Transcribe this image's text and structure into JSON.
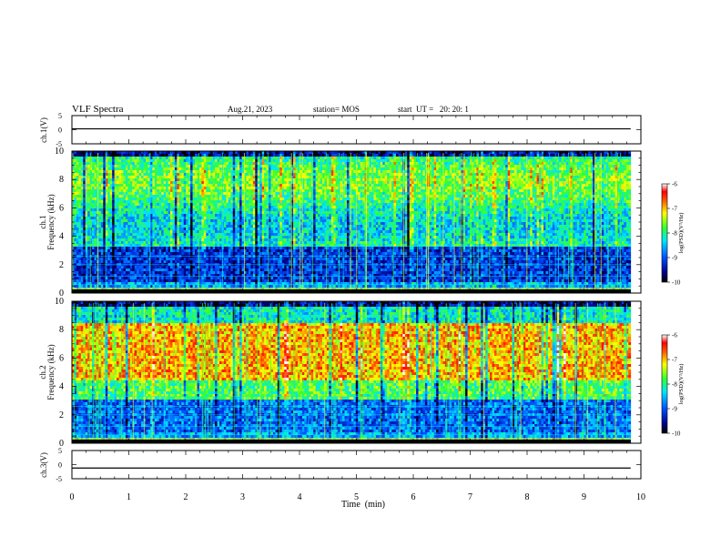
{
  "header": {
    "title": "VLF Spectra",
    "date": "Aug.21, 2023",
    "station": "station= MOS",
    "start_ut": "start  UT =   20: 20: 1"
  },
  "chart_data": [
    {
      "type": "line",
      "panel": "ch.1(V)",
      "ylabel": "ch.1(V)",
      "ylim": [
        -5,
        5
      ],
      "y_ticks": [
        "5",
        "0",
        "-5"
      ],
      "x": [
        0,
        9.82
      ],
      "values": [
        0.3,
        0.3
      ]
    },
    {
      "type": "heatmap",
      "panel": "ch.1 spectrogram",
      "ylabel": "ch.1",
      "ylabel2": "Frequency (kHz)",
      "ylim": [
        0,
        10
      ],
      "y_ticks": [
        "0",
        "2",
        "4",
        "6",
        "8",
        "10"
      ],
      "xlim": [
        0,
        10
      ],
      "data_end_min": 9.82,
      "colorbar": {
        "label": "log(PSD)(V²/Hz)",
        "range": [
          -10,
          -6
        ],
        "ticks": [
          "-6",
          "-7",
          "-8",
          "-9",
          "-10"
        ]
      }
    },
    {
      "type": "heatmap",
      "panel": "ch.2 spectrogram",
      "ylabel": "ch.2",
      "ylabel2": "Frequency (kHz)",
      "ylim": [
        0,
        10
      ],
      "y_ticks": [
        "0",
        "2",
        "4",
        "6",
        "8",
        "10"
      ],
      "xlim": [
        0,
        10
      ],
      "data_end_min": 9.82,
      "colorbar": {
        "label": "log(PSD)(V²/Hz)",
        "range": [
          -10,
          -6
        ],
        "ticks": [
          "-6",
          "-7",
          "-8",
          "-9",
          "-10"
        ]
      }
    },
    {
      "type": "line",
      "panel": "ch.3(V)",
      "ylabel": "ch.3(V)",
      "ylim": [
        -5,
        5
      ],
      "y_ticks": [
        "5",
        "0",
        "-5"
      ],
      "x": [
        0,
        9.82
      ],
      "values": [
        -1.2,
        -1.2
      ]
    }
  ],
  "x_axis": {
    "label": "Time  (min)",
    "range": [
      0,
      10
    ],
    "ticks": [
      "0",
      "1",
      "2",
      "3",
      "4",
      "5",
      "6",
      "7",
      "8",
      "9",
      "10"
    ]
  },
  "colors": {
    "data_edge": "#000000",
    "background": "#ffffff"
  }
}
